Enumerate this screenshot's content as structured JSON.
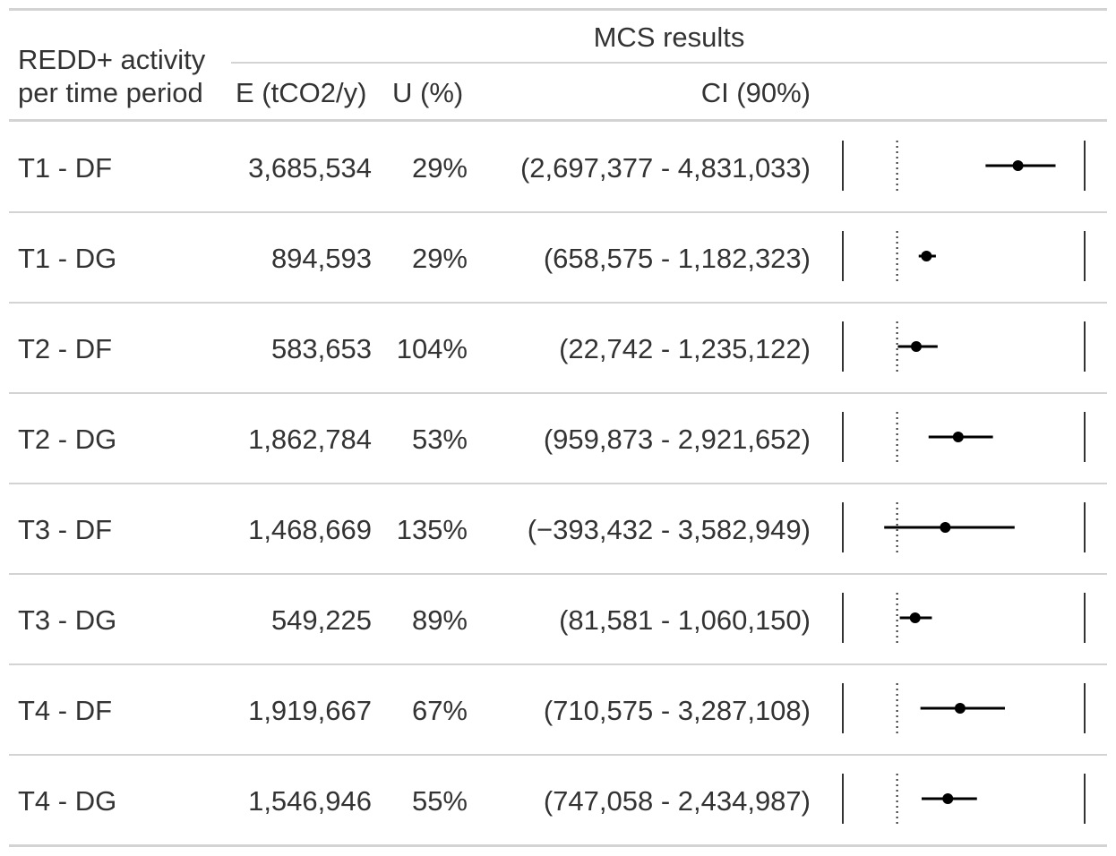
{
  "table": {
    "header": {
      "group_label": "MCS results",
      "col_activity_line1": "REDD+ activity",
      "col_activity_line2": "per time period",
      "col_e": "E (tCO2/y)",
      "col_u": "U (%)",
      "col_ci": "CI (90%)"
    },
    "rows": [
      {
        "activity": "T1 - DF",
        "e": "3,685,534",
        "u": "29%",
        "ci": "(2,697,377 - 4,831,033)"
      },
      {
        "activity": "T1 - DG",
        "e": "894,593",
        "u": "29%",
        "ci": "(658,575 - 1,182,323)"
      },
      {
        "activity": "T2 - DF",
        "e": "583,653",
        "u": "104%",
        "ci": "(22,742 - 1,235,122)"
      },
      {
        "activity": "T2 - DG",
        "e": "1,862,784",
        "u": "53%",
        "ci": "(959,873 - 2,921,652)"
      },
      {
        "activity": "T3 - DF",
        "e": "1,468,669",
        "u": "135%",
        "ci": "(−393,432 - 3,582,949)"
      },
      {
        "activity": "T3 - DG",
        "e": "549,225",
        "u": "89%",
        "ci": "(81,581 - 1,060,150)"
      },
      {
        "activity": "T4 - DF",
        "e": "1,919,667",
        "u": "67%",
        "ci": "(710,575 - 3,287,108)"
      },
      {
        "activity": "T4 - DG",
        "e": "1,546,946",
        "u": "55%",
        "ci": "(747,058 - 2,434,987)"
      }
    ]
  },
  "chart_data": {
    "type": "forest",
    "categories": [
      "T1 - DF",
      "T1 - DG",
      "T2 - DF",
      "T2 - DG",
      "T3 - DF",
      "T3 - DG",
      "T4 - DF",
      "T4 - DG"
    ],
    "estimate": [
      3685534,
      894593,
      583653,
      1862784,
      1468669,
      549225,
      1919667,
      1546946
    ],
    "ci_lower": [
      2697377,
      658575,
      22742,
      959873,
      -393432,
      81581,
      710575,
      747058
    ],
    "ci_upper": [
      4831033,
      1182323,
      1235122,
      2921652,
      3582949,
      1060150,
      3287108,
      2434987
    ],
    "reference_line": 0,
    "xlim": [
      -1000000,
      5500000
    ],
    "colors": {
      "point": "#000000",
      "line": "#000000",
      "axis": "#333333",
      "rule": "#d3d3d3"
    }
  }
}
